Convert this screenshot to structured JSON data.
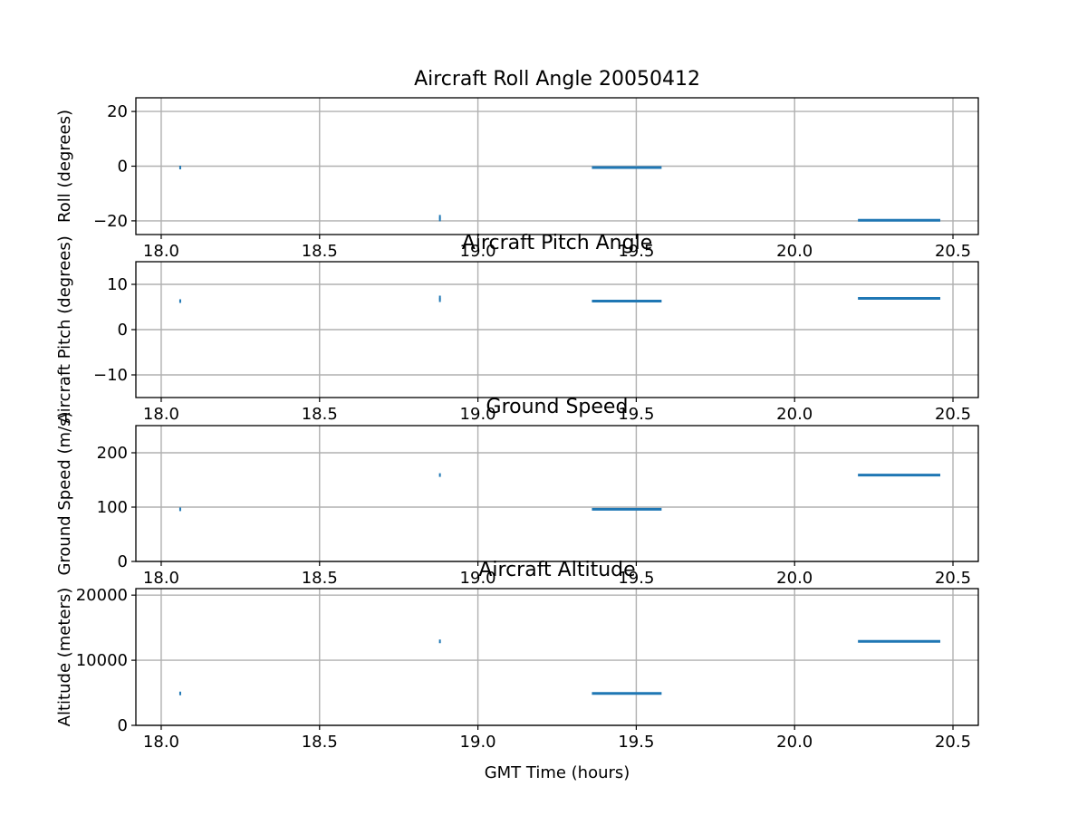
{
  "colors": {
    "series": "#1f77b4",
    "grid": "#b0b0b0",
    "frame": "#000000"
  },
  "chart_data": [
    {
      "type": "scatter",
      "title": "Aircraft Roll Angle 20050412",
      "xlabel": "",
      "ylabel": "Roll (degrees)",
      "xlim": [
        17.92,
        20.58
      ],
      "ylim": [
        -25,
        25
      ],
      "xticks": [
        18.0,
        18.5,
        19.0,
        19.5,
        20.0,
        20.5
      ],
      "xtick_labels": [
        "18.0",
        "18.5",
        "19.0",
        "19.5",
        "20.0",
        "20.5"
      ],
      "yticks": [
        20,
        0,
        -20
      ],
      "ytick_labels": [
        "20",
        "0",
        "−20"
      ],
      "grid": true,
      "points": [
        {
          "x": 18.06,
          "y": -0.5
        },
        {
          "x": 18.88,
          "y": -18.5
        },
        {
          "x": 18.88,
          "y": -19.5
        }
      ],
      "segments": [
        {
          "x_start": 19.36,
          "x_end": 19.58,
          "y": -0.5
        },
        {
          "x_start": 20.2,
          "x_end": 20.46,
          "y": -19.8
        }
      ]
    },
    {
      "type": "scatter",
      "title": "Aircraft Pitch Angle",
      "xlabel": "",
      "ylabel": "Aircraft Pitch (degrees)",
      "xlim": [
        17.92,
        20.58
      ],
      "ylim": [
        -15,
        15
      ],
      "xticks": [
        18.0,
        18.5,
        19.0,
        19.5,
        20.0,
        20.5
      ],
      "xtick_labels": [
        "18.0",
        "18.5",
        "19.0",
        "19.5",
        "20.0",
        "20.5"
      ],
      "yticks": [
        10,
        0,
        -10
      ],
      "ytick_labels": [
        "10",
        "0",
        "−10"
      ],
      "grid": true,
      "points": [
        {
          "x": 18.06,
          "y": 6.3
        },
        {
          "x": 18.88,
          "y": 6.5
        },
        {
          "x": 18.88,
          "y": 7.1
        }
      ],
      "segments": [
        {
          "x_start": 19.36,
          "x_end": 19.58,
          "y": 6.3
        },
        {
          "x_start": 20.2,
          "x_end": 20.46,
          "y": 6.9
        }
      ]
    },
    {
      "type": "scatter",
      "title": "Ground Speed",
      "xlabel": "",
      "ylabel": "Ground Speed (m/s)",
      "xlim": [
        17.92,
        20.58
      ],
      "ylim": [
        0,
        250
      ],
      "xticks": [
        18.0,
        18.5,
        19.0,
        19.5,
        20.0,
        20.5
      ],
      "xtick_labels": [
        "18.0",
        "18.5",
        "19.0",
        "19.5",
        "20.0",
        "20.5"
      ],
      "yticks": [
        200,
        100,
        0
      ],
      "ytick_labels": [
        "200",
        "100",
        "0"
      ],
      "grid": true,
      "points": [
        {
          "x": 18.06,
          "y": 96
        },
        {
          "x": 18.88,
          "y": 159
        }
      ],
      "segments": [
        {
          "x_start": 19.36,
          "x_end": 19.58,
          "y": 96
        },
        {
          "x_start": 20.2,
          "x_end": 20.46,
          "y": 159
        }
      ]
    },
    {
      "type": "scatter",
      "title": "Aircraft Altitude",
      "xlabel": "GMT Time (hours)",
      "ylabel": "Altitude (meters)",
      "xlim": [
        17.92,
        20.58
      ],
      "ylim": [
        0,
        21000
      ],
      "xticks": [
        18.0,
        18.5,
        19.0,
        19.5,
        20.0,
        20.5
      ],
      "xtick_labels": [
        "18.0",
        "18.5",
        "19.0",
        "19.5",
        "20.0",
        "20.5"
      ],
      "yticks": [
        20000,
        10000,
        0
      ],
      "ytick_labels": [
        "20000",
        "10000",
        "0"
      ],
      "grid": true,
      "points": [
        {
          "x": 18.06,
          "y": 4900
        },
        {
          "x": 18.88,
          "y": 12900
        }
      ],
      "segments": [
        {
          "x_start": 19.36,
          "x_end": 19.58,
          "y": 4900
        },
        {
          "x_start": 20.2,
          "x_end": 20.46,
          "y": 12900
        }
      ]
    }
  ]
}
